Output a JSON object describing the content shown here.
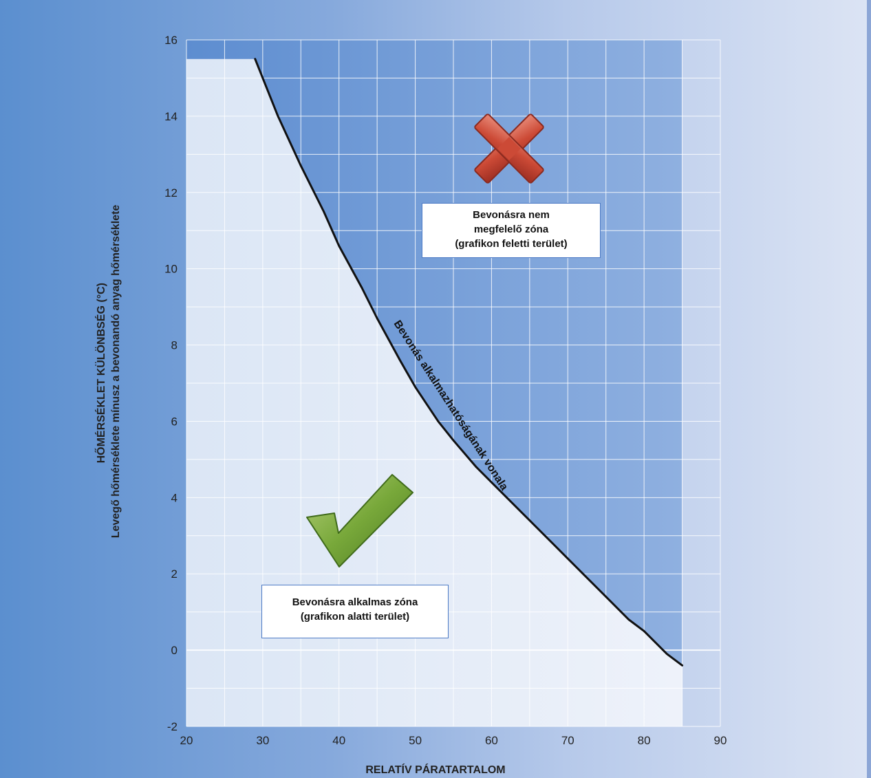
{
  "chart_data": {
    "type": "line",
    "xlabel": "RELATÍV PÁRATARTALOM",
    "ylabel_line1": "HŐMÉRSÉKLET KÜLÖNBSÉG (°C)",
    "ylabel_line2": "Levegő hőmérséklete mínusz a bevonandó anyag hőmérséklete",
    "xlim": [
      20,
      90
    ],
    "ylim": [
      -2,
      16
    ],
    "x_ticks": [
      "20",
      "30",
      "40",
      "50",
      "60",
      "70",
      "80",
      "90"
    ],
    "y_ticks": [
      "-2",
      "0",
      "2",
      "4",
      "6",
      "8",
      "10",
      "12",
      "14",
      "16"
    ],
    "grid": true,
    "series": [
      {
        "name": "Bevonás alkalmazhatóságának vonala",
        "x": [
          20,
          29,
          30,
          32,
          35,
          38,
          40,
          43,
          45,
          48,
          50,
          53,
          55,
          58,
          60,
          63,
          65,
          68,
          70,
          73,
          75,
          78,
          80,
          83,
          85
        ],
        "y": [
          15.5,
          15.5,
          15.0,
          14.0,
          12.7,
          11.5,
          10.6,
          9.5,
          8.7,
          7.6,
          6.9,
          6.0,
          5.5,
          4.8,
          4.4,
          3.8,
          3.4,
          2.8,
          2.4,
          1.8,
          1.4,
          0.8,
          0.5,
          -0.1,
          -0.4
        ]
      }
    ],
    "annotations": {
      "unsuitable": [
        "Bevonásra nem",
        "megfelelő zóna",
        "(grafikon feletti terület)"
      ],
      "suitable": [
        "Bevonásra alkalmas zóna",
        "(grafikon alatti terület)"
      ]
    },
    "colors": {
      "line": "#111111",
      "unsuitable_zone": "#5a8ad0",
      "suitable_zone": "#ffffff",
      "cross": "#c8402f",
      "check": "#6a9a2e",
      "grid": "#ffffff"
    }
  }
}
